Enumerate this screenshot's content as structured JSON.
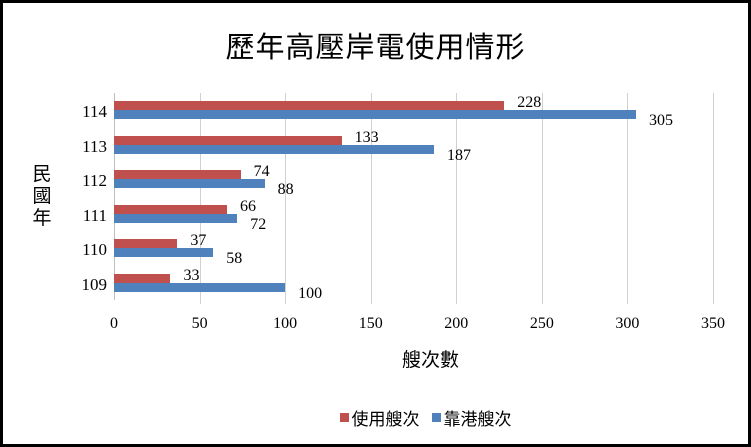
{
  "chart_data": {
    "type": "bar",
    "orientation": "horizontal",
    "title": "歷年高壓岸電使用情形",
    "xlabel": "艘次數",
    "ylabel": "民國年",
    "categories": [
      "114",
      "113",
      "112",
      "111",
      "110",
      "109"
    ],
    "series": [
      {
        "name": "使用艘次",
        "color": "#c0504d",
        "values": [
          228,
          133,
          74,
          66,
          37,
          33
        ]
      },
      {
        "name": "靠港艘次",
        "color": "#4f81bd",
        "values": [
          305,
          187,
          88,
          72,
          58,
          100
        ]
      }
    ],
    "xlim": [
      0,
      350
    ],
    "xticks": [
      "0",
      "50",
      "100",
      "150",
      "200",
      "250",
      "300",
      "350"
    ],
    "grid": "vertical",
    "legend_position": "bottom",
    "data_labels": true
  },
  "chart": {
    "title": "歷年高壓岸電使用情形",
    "xlabel": "艘次數",
    "ylabel_chars": [
      "民",
      "國",
      "年"
    ],
    "legend": [
      "使用艘次",
      "靠港艘次"
    ]
  }
}
